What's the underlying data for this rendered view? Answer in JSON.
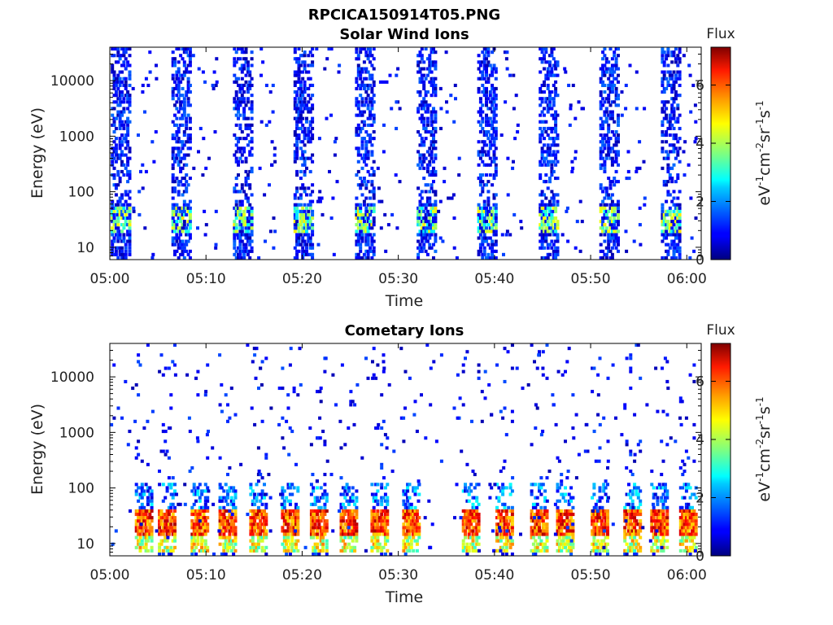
{
  "figure": {
    "title": "RPCICA150914T05.PNG"
  },
  "colorbar": {
    "label": "Flux",
    "unit_base": "eV",
    "unit_exp1": "-1",
    "unit_mid": "cm",
    "unit_exp2": "-2",
    "unit_sr": "sr",
    "unit_exp3": "-1",
    "unit_s": "s",
    "unit_exp4": "-1",
    "range": [
      0,
      7.3
    ],
    "ticks": [
      "0",
      "2",
      "4",
      "6"
    ],
    "colormap": "jet"
  },
  "chart_data": [
    {
      "type": "heatmap",
      "title": "Solar Wind Ions",
      "xlabel": "Time",
      "ylabel": "Energy (eV)",
      "x_ticks": [
        "05:00",
        "05:10",
        "05:20",
        "05:30",
        "05:40",
        "05:50",
        "06:00"
      ],
      "y_ticks": [
        "10",
        "100",
        "1000",
        "10000"
      ],
      "y_scale": "log",
      "ylim": [
        6,
        40000
      ],
      "xlim_minutes": [
        0,
        61.5
      ],
      "scan_period_minutes": 6.35,
      "bursts_at_minutes": [
        1.0,
        7.3,
        13.7,
        20.0,
        26.4,
        32.8,
        39.1,
        45.5,
        51.8,
        58.2
      ],
      "peak_energy_eV": 35,
      "peak_flux": 4.8,
      "description_of_values": "Sparse low flux (0-2) broadly distributed 10-30000 eV during each burst; moderate flux (3-5) concentrated at 20-50 eV."
    },
    {
      "type": "heatmap",
      "title": "Cometary Ions",
      "xlabel": "Time",
      "ylabel": "Energy (eV)",
      "x_ticks": [
        "05:00",
        "05:10",
        "05:20",
        "05:30",
        "05:40",
        "05:50",
        "06:00"
      ],
      "y_ticks": [
        "10",
        "100",
        "1000",
        "10000"
      ],
      "y_scale": "log",
      "ylim": [
        6,
        40000
      ],
      "xlim_minutes": [
        0,
        61.5
      ],
      "peaks_at_minutes": [
        3.4,
        5.8,
        9.2,
        12.1,
        15.3,
        18.6,
        21.6,
        24.7,
        27.9,
        31.2,
        37.4,
        40.9,
        44.5,
        47.2,
        50.8,
        54.2,
        57.0,
        60.0
      ],
      "peak_energy_eV": 25,
      "peak_flux": 7.0,
      "description_of_values": "High flux (5-7) band at ~15-40 eV; sparse low-flux points up to ~10000 eV."
    }
  ]
}
